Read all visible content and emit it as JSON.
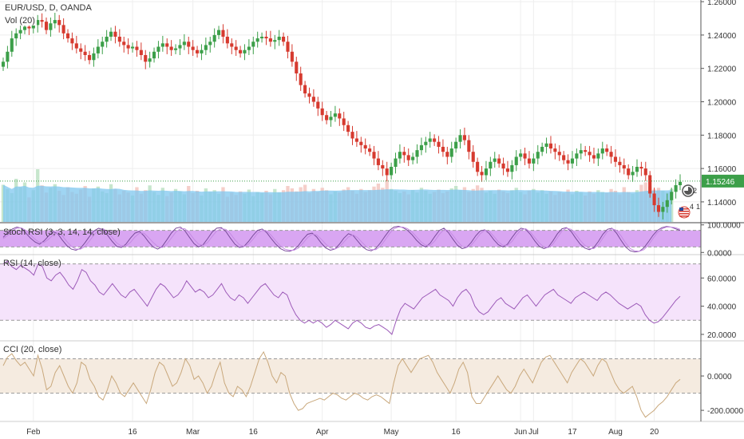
{
  "panes": {
    "main": {
      "title": "EUR/USD, D, OANDA",
      "volume_label": "Vol (20)",
      "last_price_label": "1.15246"
    },
    "stoch": {
      "title": "Stoch RSI (3, 3, 14, 14, close)"
    },
    "rsi": {
      "title": "RSI (14, close)"
    },
    "cci": {
      "title": "CCI (20, close)"
    }
  },
  "colors": {
    "up": "#3c9f49",
    "down": "#d63a2f",
    "volume": "#7fc7ef",
    "volume_ma": "#4fb3e8",
    "stoch_band": "#d9a6f2",
    "stoch_line": "#7a4b9c",
    "rsi_band": "#f5e3fb",
    "rsi_line": "#9c5ab8",
    "cci_band": "#f5ebe0",
    "cci_line": "#c9a87c",
    "price_tag": "#3c9f49",
    "last_line": "#3c9f49"
  },
  "icons": [
    "alarm-clock-icon",
    "us-flag-icon"
  ],
  "event_badges": [
    "2",
    "4",
    "1"
  ],
  "chart_data": [
    {
      "type": "candlestick",
      "title": "EUR/USD, D, OANDA",
      "y_ticks": [
        "1.26000",
        "1.24000",
        "1.22000",
        "1.20000",
        "1.18000",
        "1.16000",
        "1.14000"
      ],
      "x_ticks": [
        "Feb",
        "16",
        "Mar",
        "16",
        "Apr",
        "May",
        "16",
        "Jun",
        "Jul",
        "17",
        "Aug",
        "20"
      ],
      "ylim": [
        1.128,
        1.261
      ],
      "last_price": 1.15246,
      "close": [
        1.224,
        1.23,
        1.238,
        1.241,
        1.243,
        1.245,
        1.244,
        1.246,
        1.249,
        1.248,
        1.243,
        1.247,
        1.249,
        1.246,
        1.241,
        1.238,
        1.235,
        1.232,
        1.23,
        1.228,
        1.225,
        1.229,
        1.233,
        1.236,
        1.239,
        1.242,
        1.239,
        1.236,
        1.234,
        1.232,
        1.233,
        1.231,
        1.228,
        1.224,
        1.226,
        1.23,
        1.233,
        1.235,
        1.233,
        1.231,
        1.232,
        1.234,
        1.236,
        1.233,
        1.231,
        1.229,
        1.231,
        1.234,
        1.236,
        1.24,
        1.243,
        1.239,
        1.235,
        1.233,
        1.231,
        1.229,
        1.231,
        1.233,
        1.236,
        1.238,
        1.239,
        1.238,
        1.236,
        1.237,
        1.239,
        1.236,
        1.23,
        1.224,
        1.217,
        1.21,
        1.205,
        1.203,
        1.2,
        1.196,
        1.192,
        1.189,
        1.191,
        1.193,
        1.19,
        1.186,
        1.182,
        1.178,
        1.176,
        1.174,
        1.172,
        1.17,
        1.166,
        1.162,
        1.16,
        1.156,
        1.161,
        1.166,
        1.17,
        1.168,
        1.165,
        1.167,
        1.171,
        1.174,
        1.176,
        1.178,
        1.176,
        1.173,
        1.17,
        1.167,
        1.172,
        1.176,
        1.18,
        1.177,
        1.17,
        1.164,
        1.158,
        1.156,
        1.16,
        1.164,
        1.166,
        1.163,
        1.16,
        1.158,
        1.162,
        1.167,
        1.169,
        1.166,
        1.163,
        1.166,
        1.17,
        1.173,
        1.175,
        1.172,
        1.17,
        1.168,
        1.165,
        1.163,
        1.166,
        1.169,
        1.171,
        1.17,
        1.168,
        1.166,
        1.169,
        1.172,
        1.17,
        1.167,
        1.164,
        1.162,
        1.16,
        1.156,
        1.158,
        1.161,
        1.16,
        1.156,
        1.145,
        1.138,
        1.134,
        1.137,
        1.141,
        1.146,
        1.15,
        1.152
      ]
    },
    {
      "type": "bar",
      "title": "Vol (20)",
      "note": "volume bars with 20-period moving average",
      "relative_values": [
        0.62,
        0.55,
        0.48,
        0.72,
        0.58,
        0.66,
        0.41,
        0.53,
        0.88,
        0.61,
        0.49,
        0.57,
        0.63,
        0.52,
        0.45,
        0.58,
        0.5,
        0.47,
        0.54,
        0.6,
        0.42,
        0.56,
        0.59,
        0.51,
        0.48,
        0.63,
        0.55,
        0.46,
        0.52,
        0.49,
        0.44,
        0.58,
        0.47,
        0.53,
        0.61,
        0.5,
        0.45,
        0.57,
        0.43,
        0.49,
        0.55,
        0.51,
        0.46,
        0.6,
        0.48,
        0.52,
        0.44,
        0.56,
        0.5,
        0.53,
        0.47,
        0.58,
        0.42,
        0.49,
        0.45,
        0.51,
        0.47,
        0.54,
        0.43,
        0.5,
        0.48,
        0.52,
        0.46,
        0.55,
        0.49,
        0.53,
        0.6,
        0.56,
        0.51,
        0.58,
        0.62,
        0.48,
        0.55,
        0.5,
        0.57,
        0.53,
        0.46,
        0.51,
        0.49,
        0.54,
        0.58,
        0.52,
        0.47,
        0.55,
        0.5,
        0.53,
        0.59,
        0.64,
        0.57,
        0.7,
        0.55,
        0.52,
        0.48,
        0.51,
        0.46,
        0.53,
        0.49,
        0.57,
        0.52,
        0.47,
        0.5,
        0.54,
        0.48,
        0.51,
        0.56,
        0.6,
        0.53,
        0.58,
        0.5,
        0.55,
        0.61,
        0.57,
        0.49,
        0.52,
        0.47,
        0.54,
        0.51,
        0.48,
        0.53,
        0.57,
        0.5,
        0.46,
        0.52,
        0.55,
        0.49,
        0.53,
        0.47,
        0.51,
        0.45,
        0.5,
        0.48,
        0.54,
        0.46,
        0.52,
        0.49,
        0.44,
        0.51,
        0.47,
        0.53,
        0.5,
        0.48,
        0.55,
        0.52,
        0.46,
        0.58,
        0.5,
        0.47,
        0.53,
        0.62,
        0.66,
        0.59,
        0.54,
        0.57,
        0.52,
        0.49,
        0.55
      ]
    },
    {
      "type": "line",
      "title": "Stoch RSI (3, 3, 14, 14, close)",
      "y_ticks": [
        "100.0000",
        "0.0000"
      ],
      "ylim": [
        -5,
        105
      ],
      "bands": [
        20,
        80
      ],
      "k": [
        55,
        72,
        85,
        92,
        88,
        70,
        52,
        38,
        30,
        42,
        60,
        75,
        68,
        45,
        25,
        12,
        8,
        15,
        35,
        58,
        78,
        88,
        82,
        62,
        40,
        22,
        18,
        30,
        52,
        70,
        76,
        60,
        38,
        20,
        12,
        22,
        45,
        70,
        88,
        92,
        78,
        55,
        32,
        20,
        28,
        50,
        74,
        88,
        90,
        76,
        52,
        30,
        18,
        22,
        40,
        62,
        80,
        85,
        72,
        50,
        30,
        14,
        6,
        4,
        10,
        25,
        48,
        66,
        70,
        56,
        34,
        16,
        8,
        12,
        30,
        52,
        68,
        62,
        42,
        22,
        10,
        6,
        14,
        34,
        58,
        80,
        92,
        95,
        90,
        80,
        64,
        44,
        28,
        20,
        34,
        58,
        80,
        88,
        72,
        48,
        26,
        14,
        18,
        36,
        60,
        78,
        82,
        68,
        46,
        28,
        20,
        30,
        54,
        76,
        88,
        84,
        66,
        42,
        22,
        14,
        20,
        42,
        68,
        86,
        90,
        76,
        52,
        30,
        16,
        10,
        18,
        40,
        66,
        84,
        88,
        70,
        44,
        20,
        6,
        2,
        4,
        16,
        38,
        62,
        80,
        90,
        94,
        92,
        86,
        80
      ],
      "d": [
        50,
        62,
        78,
        88,
        89,
        80,
        64,
        48,
        36,
        36,
        48,
        64,
        70,
        60,
        40,
        22,
        12,
        12,
        22,
        42,
        64,
        80,
        86,
        74,
        54,
        34,
        24,
        24,
        36,
        56,
        70,
        70,
        54,
        36,
        22,
        18,
        30,
        52,
        74,
        86,
        86,
        70,
        48,
        30,
        26,
        36,
        58,
        78,
        86,
        84,
        68,
        46,
        28,
        22,
        30,
        48,
        70,
        80,
        78,
        62,
        42,
        24,
        12,
        8,
        8,
        16,
        34,
        54,
        66,
        64,
        48,
        30,
        16,
        12,
        20,
        38,
        56,
        64,
        54,
        36,
        20,
        10,
        10,
        22,
        44,
        68,
        86,
        92,
        92,
        86,
        74,
        56,
        38,
        26,
        26,
        42,
        66,
        82,
        80,
        62,
        40,
        22,
        18,
        26,
        46,
        68,
        80,
        76,
        58,
        38,
        26,
        26,
        40,
        64,
        82,
        86,
        74,
        54,
        34,
        20,
        18,
        30,
        54,
        78,
        88,
        84,
        66,
        44,
        26,
        14,
        14,
        28,
        52,
        76,
        86,
        80,
        60,
        34,
        14,
        6,
        4,
        10,
        26,
        50,
        72,
        86,
        92,
        92,
        90,
        84
      ]
    },
    {
      "type": "line",
      "title": "RSI (14, close)",
      "y_ticks": [
        "60.0000",
        "40.0000",
        "20.0000"
      ],
      "ylim": [
        16,
        76
      ],
      "bands": [
        30,
        70
      ],
      "values": [
        70,
        72,
        68,
        66,
        69,
        67,
        65,
        62,
        70,
        68,
        60,
        58,
        62,
        64,
        60,
        55,
        52,
        58,
        66,
        64,
        58,
        55,
        50,
        48,
        52,
        56,
        52,
        48,
        46,
        50,
        52,
        48,
        44,
        40,
        46,
        52,
        56,
        54,
        50,
        46,
        48,
        52,
        58,
        54,
        50,
        52,
        50,
        46,
        48,
        52,
        56,
        50,
        46,
        44,
        48,
        46,
        42,
        46,
        50,
        54,
        56,
        52,
        48,
        46,
        50,
        48,
        40,
        34,
        30,
        28,
        30,
        28,
        30,
        28,
        25,
        27,
        30,
        28,
        26,
        24,
        28,
        30,
        28,
        25,
        24,
        26,
        27,
        25,
        23,
        20,
        30,
        38,
        42,
        40,
        38,
        42,
        46,
        48,
        50,
        52,
        48,
        46,
        44,
        40,
        46,
        50,
        52,
        48,
        40,
        36,
        34,
        36,
        40,
        44,
        46,
        42,
        40,
        38,
        42,
        46,
        48,
        44,
        40,
        44,
        48,
        50,
        52,
        48,
        46,
        44,
        42,
        46,
        48,
        50,
        48,
        46,
        44,
        48,
        50,
        48,
        45,
        42,
        40,
        38,
        40,
        42,
        40,
        34,
        30,
        28,
        29,
        32,
        36,
        40,
        44,
        47
      ]
    },
    {
      "type": "line",
      "title": "CCI (20, close)",
      "y_ticks": [
        "0.0000",
        "-200.0000"
      ],
      "ylim": [
        -260,
        200
      ],
      "bands": [
        -100,
        100
      ],
      "values": [
        60,
        110,
        130,
        90,
        60,
        80,
        40,
        0,
        120,
        40,
        -80,
        -60,
        20,
        60,
        0,
        -60,
        -100,
        -40,
        80,
        60,
        -20,
        -60,
        -120,
        -140,
        -80,
        0,
        -40,
        -100,
        -120,
        -80,
        -40,
        -80,
        -120,
        -160,
        -80,
        20,
        80,
        60,
        0,
        -60,
        -40,
        20,
        100,
        60,
        -20,
        0,
        -40,
        -100,
        -60,
        20,
        80,
        -40,
        -100,
        -120,
        -60,
        -80,
        -120,
        -60,
        20,
        100,
        140,
        80,
        0,
        -40,
        20,
        0,
        -100,
        -160,
        -200,
        -190,
        -160,
        -150,
        -140,
        -130,
        -140,
        -120,
        -100,
        -110,
        -130,
        -140,
        -120,
        -100,
        -110,
        -130,
        -140,
        -120,
        -110,
        -120,
        -140,
        -160,
        -40,
        60,
        100,
        60,
        20,
        60,
        100,
        110,
        120,
        80,
        20,
        -20,
        -60,
        -100,
        -40,
        40,
        80,
        20,
        -120,
        -160,
        -160,
        -120,
        -80,
        -40,
        0,
        -40,
        -80,
        -100,
        -60,
        0,
        40,
        0,
        -40,
        20,
        80,
        110,
        120,
        80,
        40,
        0,
        -40,
        20,
        60,
        100,
        80,
        40,
        0,
        60,
        100,
        80,
        20,
        -40,
        -80,
        -100,
        -80,
        -60,
        -120,
        -200,
        -240,
        -220,
        -200,
        -170,
        -150,
        -120,
        -80,
        -40,
        -20
      ]
    }
  ]
}
